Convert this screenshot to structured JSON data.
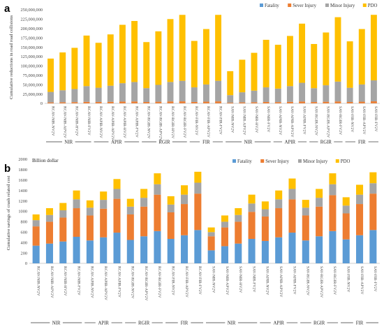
{
  "chart_data": [
    {
      "panel": "a",
      "type": "bar",
      "stacked": true,
      "title": "",
      "ylabel": "Cumulative reductions in road road collisions",
      "units_label": "",
      "ylim": [
        0,
        250000000
      ],
      "yticks": [
        0,
        25000000,
        50000000,
        75000000,
        100000000,
        125000000,
        150000000,
        175000000,
        200000000,
        225000000,
        250000000
      ],
      "ytick_labels": [
        "0",
        "25,000,000",
        "50,000,000",
        "75,000,000",
        "100,000,000",
        "125,000,000",
        "150,000,000",
        "175,000,000",
        "200,000,000",
        "225,000,000",
        "250,000,000"
      ],
      "legend": [
        "Fatality",
        "Sever Injury",
        "Minor Injury",
        "PDO"
      ],
      "legend_position": "top-right",
      "grid": false,
      "categories": [
        "RCAV-NIR-NV2V",
        "RCAV-NIR-APV2V",
        "RCAV-NIR-HV2V",
        "RCAV-NIR-FV2V",
        "RCAV-APIR-NV2V",
        "RCAV-APIR-APV2V",
        "RCAV-APIR-HV2V",
        "RCAV-APIR-FV2V",
        "RCAV-RGIR-NV2V",
        "RCAV-RGIR-APV2V",
        "RCAV-RGIR-HV2V",
        "RCAV-RGIR-FV2V",
        "RCAV-FIR-NV2V",
        "RCAV-FIR-APV2V",
        "RCAV-FIR-FV2V",
        "SAV-NIR-NV2V",
        "SAV-NIR-APV2V",
        "SAV-NIR-HV2V",
        "SAV-NIR-FV2V",
        "SAV-APIR-NV2V",
        "SAV-APIR-APV2V",
        "SAV-APIR-FV2V",
        "SAV-RGIR-NV2V",
        "SAV-RGIR-APV2V",
        "SAV-RGIR-FV2V",
        "SAV-FIR-NV2V",
        "SAV-FIR-APV2V",
        "SAV-FIR-FV2V"
      ],
      "groups": [
        {
          "label": "NIR",
          "start": 0,
          "end": 3
        },
        {
          "label": "APIR",
          "start": 4,
          "end": 7
        },
        {
          "label": "RGIR",
          "start": 8,
          "end": 11
        },
        {
          "label": "FIR",
          "start": 12,
          "end": 14
        },
        {
          "label": "NIR",
          "start": 15,
          "end": 18
        },
        {
          "label": "APIR",
          "start": 19,
          "end": 21
        },
        {
          "label": "RGIR",
          "start": 22,
          "end": 24
        },
        {
          "label": "FIR",
          "start": 25,
          "end": 27
        }
      ],
      "series": [
        {
          "name": "Fatality",
          "color": "#5b9bd5",
          "values": [
            150000,
            170000,
            190000,
            230000,
            230000,
            240000,
            270000,
            280000,
            210000,
            250000,
            290000,
            300000,
            220000,
            250000,
            300000,
            110000,
            150000,
            170000,
            220000,
            200000,
            230000,
            280000,
            210000,
            250000,
            300000,
            210000,
            260000,
            310000
          ]
        },
        {
          "name": "Sever Injury",
          "color": "#ed7d31",
          "values": [
            2500000,
            2900000,
            3200000,
            3900000,
            3600000,
            4000000,
            4600000,
            4800000,
            3500000,
            4200000,
            4900000,
            5100000,
            3600000,
            4300000,
            5100000,
            1900000,
            2500000,
            2900000,
            3600000,
            3300000,
            3900000,
            4700000,
            3400000,
            4100000,
            4900000,
            3500000,
            4300000,
            5200000
          ]
        },
        {
          "name": "Minor Injury",
          "color": "#a5a5a5",
          "values": [
            28000000,
            32000000,
            35000000,
            42000000,
            38000000,
            43000000,
            49000000,
            52000000,
            37000000,
            45000000,
            52000000,
            55000000,
            39000000,
            46000000,
            55000000,
            20000000,
            27000000,
            31000000,
            39000000,
            36000000,
            42000000,
            50000000,
            37000000,
            44000000,
            53000000,
            38000000,
            46000000,
            56000000
          ]
        },
        {
          "name": "PDO",
          "color": "#ffc000",
          "values": [
            89000000,
            101000000,
            110000000,
            135000000,
            120000000,
            137000000,
            156000000,
            163000000,
            123000000,
            143000000,
            168000000,
            176000000,
            124000000,
            148000000,
            176000000,
            64000000,
            87000000,
            101000000,
            127000000,
            117000000,
            134000000,
            158000000,
            118000000,
            141000000,
            172000000,
            124000000,
            148000000,
            175000000
          ]
        }
      ]
    },
    {
      "panel": "b",
      "type": "bar",
      "stacked": true,
      "title": "",
      "ylabel": "Cumulative savings of crash related cost",
      "units_label": "Billion dollar",
      "ylim": [
        0,
        2000
      ],
      "yticks": [
        0,
        200,
        400,
        600,
        800,
        1000,
        1200,
        1400,
        1600,
        1800,
        2000
      ],
      "ytick_labels": [
        "0",
        "200",
        "400",
        "600",
        "800",
        "1000",
        "1200",
        "1400",
        "1600",
        "1800",
        "2000"
      ],
      "legend": [
        "Fatality",
        "Sever Injury",
        "Minor Injury",
        "PDO"
      ],
      "legend_position": "top-right",
      "grid": false,
      "categories": [
        "RCAV-NIR-NV2V",
        "RCAV-NIR-APV2V",
        "RCAV-NIR-HV2V",
        "RCAV-NIR-FV2V",
        "RCAV-APIR-NV2V",
        "RCAV-APIR-APV2V",
        "RCAV-APIR-FV2V",
        "RCAV-RGIR-NV2V",
        "RCAV-RGIR-APV2V",
        "RCAV-RGIR-FV2V",
        "RCAV-FIR-NV2V",
        "RCAV-FIR-APV2V",
        "RCAV-FIR-FV2V",
        "SAV-NIR-NV2V",
        "SAV-NIR-APV2V",
        "SAV-NIR-HV2V",
        "SAV-NIR-FV2V",
        "SAV-APIR-NV2V",
        "SAV-APIR-APV2V",
        "SAV-APIR-FV2V",
        "SAV-RGIR-NV2V",
        "SAV-RGIR-APV2V",
        "SAV-RGIR-FV2V",
        "SAV-FIR-NV2V",
        "SAV-FIR-APV2V",
        "SAV-FIR-FV2V"
      ],
      "groups": [
        {
          "label": "NIR",
          "start": 0,
          "end": 3
        },
        {
          "label": "APIR",
          "start": 4,
          "end": 6
        },
        {
          "label": "RGIR",
          "start": 7,
          "end": 9
        },
        {
          "label": "FIR",
          "start": 10,
          "end": 12
        },
        {
          "label": "NIR",
          "start": 13,
          "end": 16
        },
        {
          "label": "APIR",
          "start": 17,
          "end": 19
        },
        {
          "label": "RGIR",
          "start": 20,
          "end": 22
        },
        {
          "label": "FIR",
          "start": 23,
          "end": 25
        }
      ],
      "series": [
        {
          "name": "Fatality",
          "color": "#5b9bd5",
          "values": [
            340,
            380,
            420,
            510,
            440,
            500,
            590,
            450,
            520,
            620,
            470,
            540,
            640,
            250,
            330,
            380,
            470,
            430,
            500,
            590,
            440,
            520,
            620,
            460,
            540,
            640
          ]
        },
        {
          "name": "Sever Injury",
          "color": "#ed7d31",
          "values": [
            370,
            420,
            460,
            550,
            480,
            550,
            650,
            490,
            570,
            700,
            510,
            600,
            700,
            270,
            360,
            420,
            520,
            470,
            560,
            640,
            480,
            570,
            690,
            500,
            600,
            700
          ]
        },
        {
          "name": "Minor Injury",
          "color": "#a5a5a5",
          "values": [
            120,
            130,
            140,
            170,
            150,
            170,
            190,
            150,
            170,
            200,
            150,
            180,
            210,
            80,
            110,
            130,
            160,
            140,
            170,
            200,
            150,
            170,
            210,
            150,
            180,
            200
          ]
        },
        {
          "name": "PDO",
          "color": "#ffc000",
          "values": [
            110,
            130,
            140,
            170,
            140,
            160,
            190,
            150,
            170,
            210,
            160,
            180,
            210,
            90,
            120,
            130,
            170,
            150,
            170,
            200,
            150,
            170,
            210,
            160,
            190,
            210
          ]
        }
      ]
    }
  ],
  "panel_labels": [
    "a",
    "b"
  ]
}
